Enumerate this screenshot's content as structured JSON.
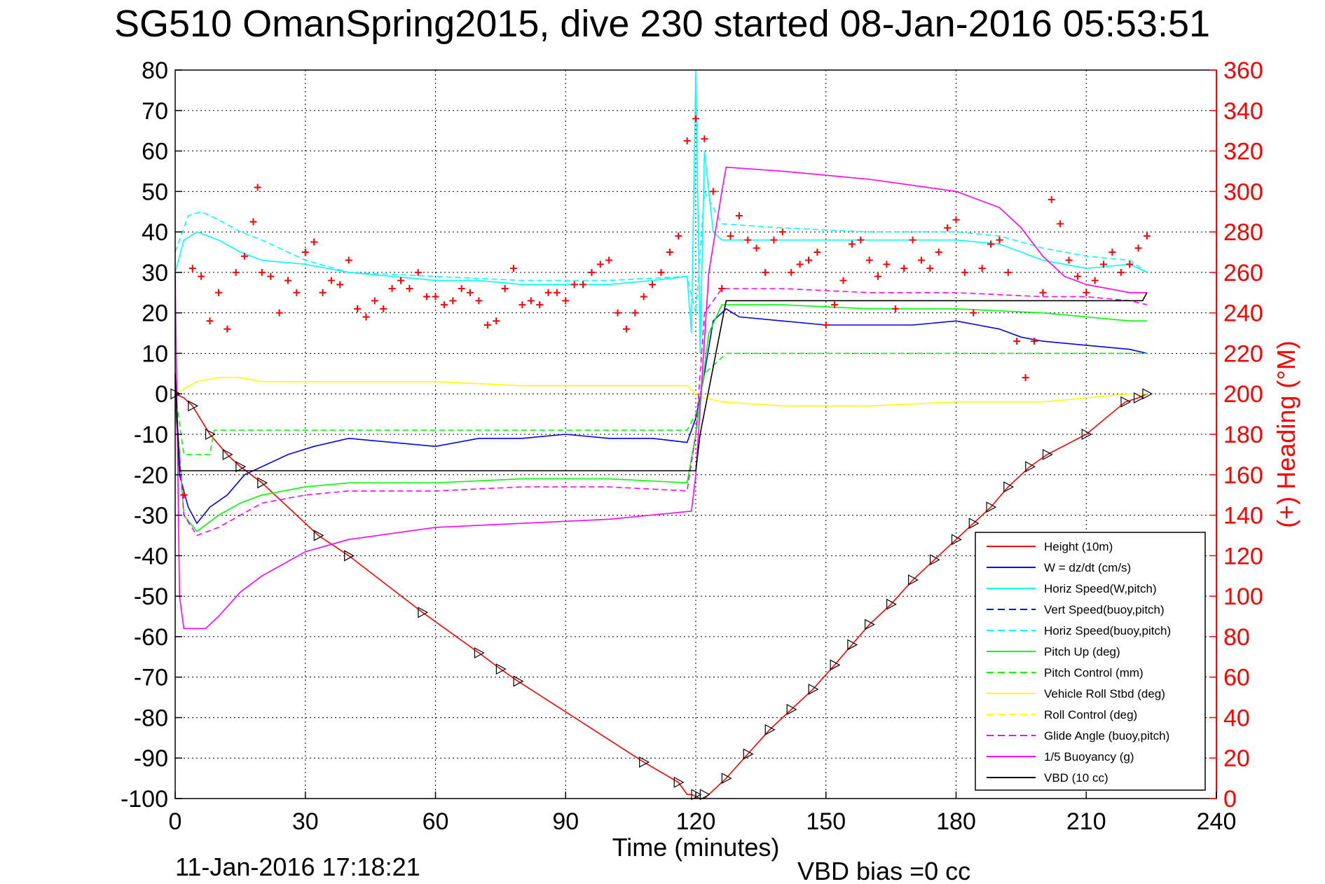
{
  "colors": {
    "red": "#ff0000",
    "blue": "#0000ff",
    "cyan": "#00ffff",
    "green": "#00ff00",
    "yellow": "#ffff00",
    "magenta": "#ff00ff",
    "black": "#000000"
  },
  "chart_data": {
    "type": "line",
    "title": "SG510 OmanSpring2015, dive 230 started 08-Jan-2016 05:53:51",
    "xlabel": "Time (minutes)",
    "ylabel_right": "(+) Heading (°M)",
    "footer_date": "11-Jan-2016 17:18:21",
    "footer_vbd": "VBD bias =0 cc",
    "xlim": [
      0,
      240
    ],
    "ylim": [
      -100,
      80
    ],
    "ylim_right": [
      0,
      360
    ],
    "x_ticks": [
      "0",
      "30",
      "60",
      "90",
      "120",
      "150",
      "180",
      "210",
      "240"
    ],
    "y_ticks": [
      "-100",
      "-90",
      "-80",
      "-70",
      "-60",
      "-50",
      "-40",
      "-30",
      "-20",
      "-10",
      "0",
      "10",
      "20",
      "30",
      "40",
      "50",
      "60",
      "70",
      "80"
    ],
    "y_right_ticks": [
      "0",
      "20",
      "40",
      "60",
      "80",
      "100",
      "120",
      "140",
      "160",
      "180",
      "200",
      "220",
      "240",
      "260",
      "280",
      "300",
      "320",
      "340",
      "360"
    ],
    "grid": true,
    "legend_position": "bottom-right",
    "legend": [
      {
        "label": "Height (10m)",
        "color": "#ff0000",
        "dash": "solid"
      },
      {
        "label": "W = dz/dt (cm/s)",
        "color": "#0000ff",
        "dash": "solid"
      },
      {
        "label": "Horiz Speed(W,pitch)",
        "color": "#00ffff",
        "dash": "solid"
      },
      {
        "label": "Vert Speed(buoy,pitch)",
        "color": "#0000ff",
        "dash": "dashed"
      },
      {
        "label": "Horiz Speed(buoy,pitch)",
        "color": "#00ffff",
        "dash": "dashed"
      },
      {
        "label": "Pitch Up (deg)",
        "color": "#00ff00",
        "dash": "solid"
      },
      {
        "label": "Pitch Control (mm)",
        "color": "#00ff00",
        "dash": "dashed"
      },
      {
        "label": "Vehicle Roll Stbd (deg)",
        "color": "#ffff00",
        "dash": "solid"
      },
      {
        "label": "Roll Control (deg)",
        "color": "#ffff00",
        "dash": "dashed"
      },
      {
        "label": "Glide Angle (buoy,pitch)",
        "color": "#ff00ff",
        "dash": "dashed"
      },
      {
        "label": "1/5 Buoyancy (g)",
        "color": "#ff00ff",
        "dash": "solid"
      },
      {
        "label": "VBD (10 cc)",
        "color": "#000000",
        "dash": "solid"
      }
    ],
    "series": [
      {
        "key": "height",
        "color": "#ff0000",
        "dash": "solid",
        "x": [
          0,
          2,
          4,
          8,
          12,
          15,
          20,
          33,
          40,
          57,
          70,
          75,
          79,
          108,
          116,
          118,
          119,
          121,
          122,
          123,
          125,
          127,
          132,
          137,
          142,
          147,
          152,
          156,
          160,
          165,
          170,
          175,
          180,
          184,
          188,
          192,
          197,
          201,
          210,
          219,
          222,
          224
        ],
        "y": [
          0,
          -1,
          -3,
          -10,
          -15,
          -18,
          -22,
          -35,
          -40,
          -54,
          -64,
          -68,
          -71,
          -91,
          -96,
          -99,
          -99,
          -100,
          -100,
          -99,
          -97,
          -95,
          -89,
          -83,
          -78,
          -73,
          -67,
          -62,
          -57,
          -52,
          -46,
          -41,
          -36,
          -32,
          -28,
          -23,
          -18,
          -15,
          -10,
          -2,
          -1,
          0
        ]
      },
      {
        "key": "w",
        "color": "#0000ff",
        "dash": "solid",
        "x": [
          0,
          1,
          3,
          5,
          8,
          12,
          16,
          20,
          26,
          32,
          40,
          50,
          60,
          70,
          80,
          90,
          100,
          110,
          118,
          120,
          122,
          124,
          127,
          130,
          140,
          150,
          160,
          170,
          180,
          190,
          195,
          200,
          210,
          220,
          224
        ],
        "y": [
          0,
          -20,
          -28,
          -32,
          -28,
          -25,
          -20,
          -18,
          -15,
          -13,
          -11,
          -12,
          -13,
          -11,
          -11,
          -10,
          -11,
          -11,
          -12,
          -6,
          5,
          18,
          21,
          19,
          18,
          17,
          17,
          17,
          18,
          16,
          14,
          13,
          12,
          11,
          10
        ]
      },
      {
        "key": "horiz_w",
        "color": "#00ffff",
        "dash": "solid",
        "x": [
          0,
          2,
          5,
          10,
          15,
          20,
          30,
          40,
          50,
          60,
          70,
          80,
          90,
          100,
          110,
          118,
          119,
          120,
          121,
          122,
          124,
          126,
          130,
          140,
          150,
          160,
          170,
          180,
          190,
          195,
          200,
          210,
          220,
          224
        ],
        "y": [
          30,
          38,
          40,
          38,
          35,
          33,
          32,
          30,
          29,
          28,
          28,
          27,
          27,
          27,
          28,
          29,
          15,
          80,
          10,
          60,
          40,
          38,
          38,
          38,
          38,
          38,
          38,
          38,
          37,
          35,
          33,
          31,
          32,
          30
        ]
      },
      {
        "key": "horiz_buoy",
        "color": "#00ffff",
        "dash": "dashed",
        "x": [
          0,
          3,
          6,
          10,
          15,
          20,
          30,
          40,
          60,
          80,
          100,
          118,
          120,
          122,
          126,
          140,
          160,
          180,
          190,
          200,
          210,
          220,
          224
        ],
        "y": [
          35,
          44,
          45,
          43,
          40,
          38,
          33,
          30,
          29,
          28,
          28,
          29,
          20,
          50,
          42,
          41,
          40,
          40,
          39,
          36,
          34,
          33,
          30
        ]
      },
      {
        "key": "pitch_up",
        "color": "#00ff00",
        "dash": "solid",
        "x": [
          0,
          2,
          5,
          10,
          15,
          20,
          30,
          40,
          60,
          80,
          100,
          118,
          120,
          123,
          126,
          140,
          160,
          180,
          200,
          210,
          220,
          224
        ],
        "y": [
          0,
          -30,
          -34,
          -30,
          -27,
          -25,
          -23,
          -22,
          -22,
          -21,
          -21,
          -22,
          -10,
          15,
          22,
          22,
          21,
          21,
          20,
          19,
          18,
          18
        ]
      },
      {
        "key": "pitch_ctrl",
        "color": "#00ff00",
        "dash": "dashed",
        "x": [
          0,
          2,
          8,
          9,
          30,
          31,
          60,
          61,
          118,
          120,
          122,
          126,
          127,
          224
        ],
        "y": [
          0,
          -15,
          -15,
          -9,
          -9,
          -9,
          -9,
          -9,
          -9,
          -5,
          5,
          9,
          10,
          10
        ]
      },
      {
        "key": "roll",
        "color": "#ffff00",
        "dash": "solid",
        "x": [
          0,
          5,
          10,
          15,
          20,
          30,
          40,
          60,
          80,
          100,
          118,
          120,
          122,
          126,
          140,
          160,
          180,
          200,
          210,
          220,
          224
        ],
        "y": [
          0,
          3,
          4,
          4,
          3,
          3,
          3,
          3,
          2,
          2,
          2,
          0,
          -1,
          -2,
          -3,
          -3,
          -2,
          -2,
          -1,
          0,
          0
        ]
      },
      {
        "key": "glide",
        "color": "#ff00ff",
        "dash": "dashed",
        "x": [
          0,
          2,
          5,
          10,
          15,
          20,
          30,
          40,
          60,
          80,
          100,
          118,
          120,
          122,
          126,
          140,
          160,
          180,
          200,
          210,
          220,
          224
        ],
        "y": [
          0,
          -30,
          -35,
          -33,
          -30,
          -27,
          -25,
          -24,
          -24,
          -23,
          -23,
          -24,
          -10,
          20,
          26,
          26,
          25,
          25,
          24,
          24,
          23,
          22
        ]
      },
      {
        "key": "buoyancy",
        "color": "#ff00ff",
        "dash": "solid",
        "x": [
          0,
          1,
          2,
          7,
          10,
          15,
          20,
          25,
          30,
          40,
          60,
          80,
          100,
          119,
          120,
          123,
          126,
          127,
          140,
          160,
          180,
          190,
          195,
          200,
          205,
          210,
          220,
          224
        ],
        "y": [
          30,
          -50,
          -58,
          -58,
          -55,
          -49,
          -45,
          -42,
          -39,
          -36,
          -33,
          -32,
          -31,
          -29,
          -20,
          30,
          50,
          56,
          55,
          53,
          50,
          46,
          41,
          34,
          29,
          27,
          25,
          25
        ]
      },
      {
        "key": "vbd",
        "color": "#000000",
        "dash": "solid",
        "x": [
          0,
          1,
          2,
          120,
          121,
          127,
          128,
          223,
          224
        ],
        "y": [
          5,
          -19,
          -19,
          -19,
          -10,
          23,
          23,
          23,
          25
        ]
      },
      {
        "key": "heading",
        "color": "#ff0000",
        "dash": "none",
        "axis": "right",
        "marker": "+",
        "x": [
          2,
          4,
          6,
          8,
          10,
          12,
          14,
          16,
          18,
          19,
          20,
          22,
          24,
          26,
          28,
          30,
          32,
          34,
          36,
          38,
          40,
          42,
          44,
          46,
          48,
          50,
          52,
          54,
          56,
          58,
          60,
          62,
          64,
          66,
          68,
          70,
          72,
          74,
          76,
          78,
          80,
          82,
          84,
          86,
          88,
          90,
          92,
          94,
          96,
          98,
          100,
          102,
          104,
          106,
          108,
          110,
          112,
          114,
          116,
          118,
          120,
          122,
          124,
          126,
          128,
          130,
          132,
          134,
          136,
          138,
          140,
          142,
          144,
          146,
          148,
          150,
          152,
          154,
          156,
          158,
          160,
          162,
          164,
          166,
          168,
          170,
          172,
          174,
          176,
          178,
          180,
          182,
          184,
          186,
          188,
          190,
          192,
          194,
          196,
          198,
          200,
          202,
          204,
          206,
          208,
          210,
          212,
          214,
          216,
          218,
          220,
          222,
          224
        ],
        "y": [
          150,
          262,
          258,
          236,
          250,
          232,
          260,
          268,
          285,
          302,
          260,
          258,
          240,
          256,
          250,
          270,
          275,
          250,
          256,
          254,
          266,
          242,
          238,
          246,
          242,
          252,
          256,
          252,
          260,
          248,
          248,
          244,
          246,
          252,
          250,
          246,
          234,
          236,
          252,
          262,
          244,
          246,
          244,
          250,
          250,
          246,
          254,
          254,
          260,
          264,
          266,
          240,
          232,
          240,
          248,
          254,
          260,
          270,
          278,
          325,
          336,
          326,
          300,
          252,
          278,
          288,
          276,
          272,
          260,
          276,
          280,
          260,
          264,
          266,
          270,
          234,
          244,
          256,
          274,
          276,
          266,
          258,
          264,
          242,
          262,
          276,
          266,
          262,
          270,
          282,
          286,
          260,
          240,
          262,
          274,
          276,
          260,
          226,
          208,
          226,
          250,
          296,
          284,
          266,
          258,
          250,
          256,
          264,
          270,
          260,
          264,
          272,
          278
        ]
      }
    ],
    "markers": {
      "x": [
        0,
        4,
        8,
        12,
        15,
        20,
        33,
        40,
        57,
        70,
        75,
        79,
        108,
        116,
        120,
        122,
        127,
        132,
        137,
        142,
        147,
        152,
        156,
        160,
        165,
        170,
        175,
        180,
        184,
        188,
        192,
        197,
        201,
        210,
        219,
        222,
        224
      ],
      "y": [
        0,
        -3,
        -10,
        -15,
        -18,
        -22,
        -35,
        -40,
        -54,
        -64,
        -68,
        -71,
        -91,
        -96,
        -99,
        -99,
        -95,
        -89,
        -83,
        -78,
        -73,
        -67,
        -62,
        -57,
        -52,
        -46,
        -41,
        -36,
        -32,
        -28,
        -23,
        -18,
        -15,
        -10,
        -2,
        -1,
        0
      ]
    }
  }
}
